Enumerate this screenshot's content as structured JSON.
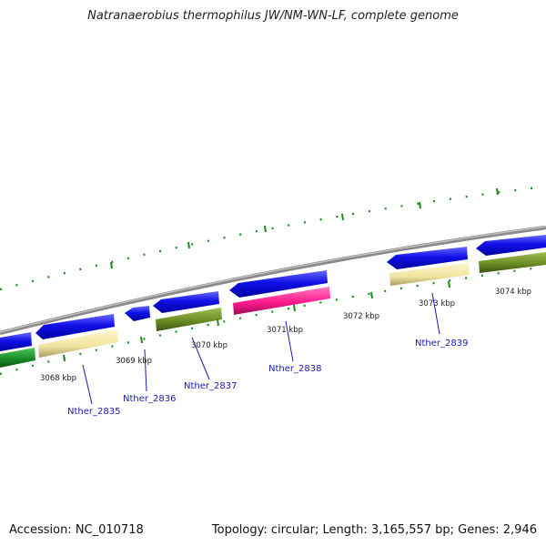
{
  "title": "Natranaerobius thermophilus JW/NM-WN-LF, complete genome",
  "footer": {
    "accession": "Accession: NC_010718",
    "summary": "Topology: circular; Length: 3,165,557 bp; Genes: 2,946"
  },
  "colors": {
    "blue_gene": "#1010e8",
    "pale_yellow": "#f0e4a0",
    "olive_green": "#6b8e23",
    "green": "#1a8f2a",
    "magenta": "#ff1a8c",
    "backbone": "#8a8a8a",
    "tick_green": "#1a8a1a",
    "label_blue": "#1a1ab0"
  },
  "ruler": [
    "3068 kbp",
    "3069 kbp",
    "3070 kbp",
    "3071 kbp",
    "3072 kbp",
    "3073 kbp",
    "3074 kbp"
  ],
  "loci": [
    "Nther_2835",
    "Nther_2836",
    "Nther_2837",
    "Nther_2838",
    "Nther_2839"
  ]
}
